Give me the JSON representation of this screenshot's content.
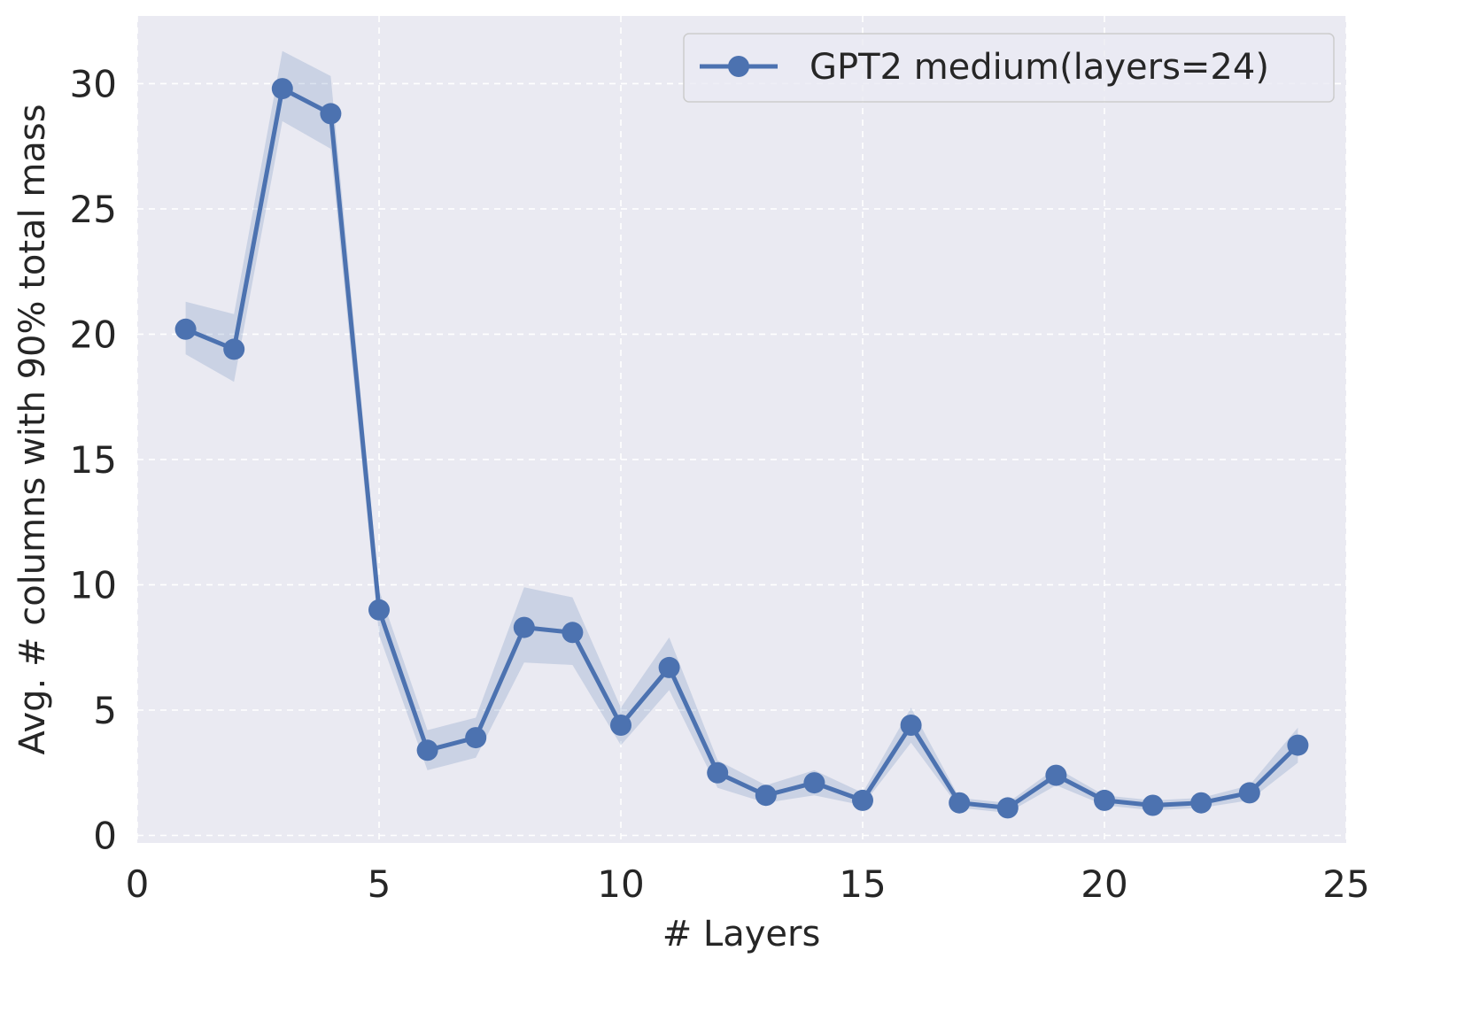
{
  "chart_data": {
    "type": "line",
    "title": "",
    "xlabel": "# Layers",
    "ylabel": "Avg. # columns with 90% total mass",
    "xlim": [
      0,
      25
    ],
    "ylim": [
      -0.3,
      32.7
    ],
    "xticks": [
      0,
      5,
      10,
      15,
      20,
      25
    ],
    "yticks": [
      0,
      5,
      10,
      15,
      20,
      25,
      30
    ],
    "grid": true,
    "legend": "top-right",
    "series": [
      {
        "name": "GPT2 medium(layers=24)",
        "color": "#4c72b0",
        "band_color": "#4c72b0",
        "marker": "circle",
        "x": [
          1,
          2,
          3,
          4,
          5,
          6,
          7,
          8,
          9,
          10,
          11,
          12,
          13,
          14,
          15,
          16,
          17,
          18,
          19,
          20,
          21,
          22,
          23,
          24
        ],
        "y": [
          20.2,
          19.4,
          29.8,
          28.8,
          9.0,
          3.4,
          3.9,
          8.3,
          8.1,
          4.4,
          6.7,
          2.5,
          1.6,
          2.1,
          1.4,
          4.4,
          1.3,
          1.1,
          2.4,
          1.4,
          1.2,
          1.3,
          1.7,
          3.6
        ],
        "lower": [
          19.2,
          18.1,
          28.5,
          27.4,
          8.0,
          2.6,
          3.1,
          6.9,
          6.8,
          3.6,
          5.8,
          1.9,
          1.3,
          1.6,
          1.2,
          3.7,
          1.1,
          0.9,
          2.0,
          1.2,
          1.0,
          1.1,
          1.4,
          2.9
        ],
        "upper": [
          21.3,
          20.8,
          31.3,
          30.3,
          9.8,
          4.2,
          4.7,
          9.9,
          9.5,
          5.1,
          7.9,
          3.0,
          2.0,
          2.6,
          1.7,
          5.1,
          1.5,
          1.3,
          2.7,
          1.6,
          1.4,
          1.5,
          2.0,
          4.3
        ]
      }
    ]
  }
}
